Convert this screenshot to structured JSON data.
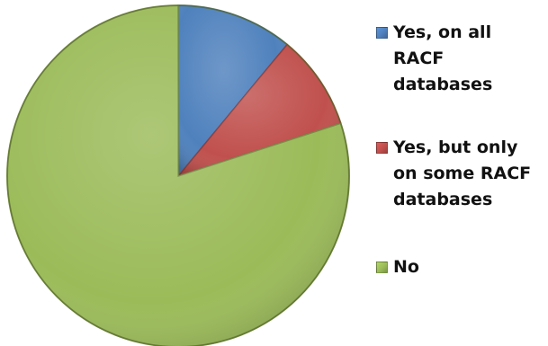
{
  "chart_data": {
    "type": "pie",
    "title": "",
    "categories": [
      "Yes, on all RACF databases",
      "Yes, but only on some RACF databases",
      "No"
    ],
    "values": [
      11,
      9,
      80
    ],
    "colors": [
      "#4f81bd",
      "#c0504d",
      "#9bbb59"
    ],
    "legend_position": "right",
    "legend": [
      {
        "label": "Yes, on all\nRACF\ndatabases",
        "color": "#4f81bd"
      },
      {
        "label": "Yes, but only\non some RACF\ndatabases",
        "color": "#c0504d"
      },
      {
        "label": "No",
        "color": "#9bbb59"
      }
    ]
  }
}
